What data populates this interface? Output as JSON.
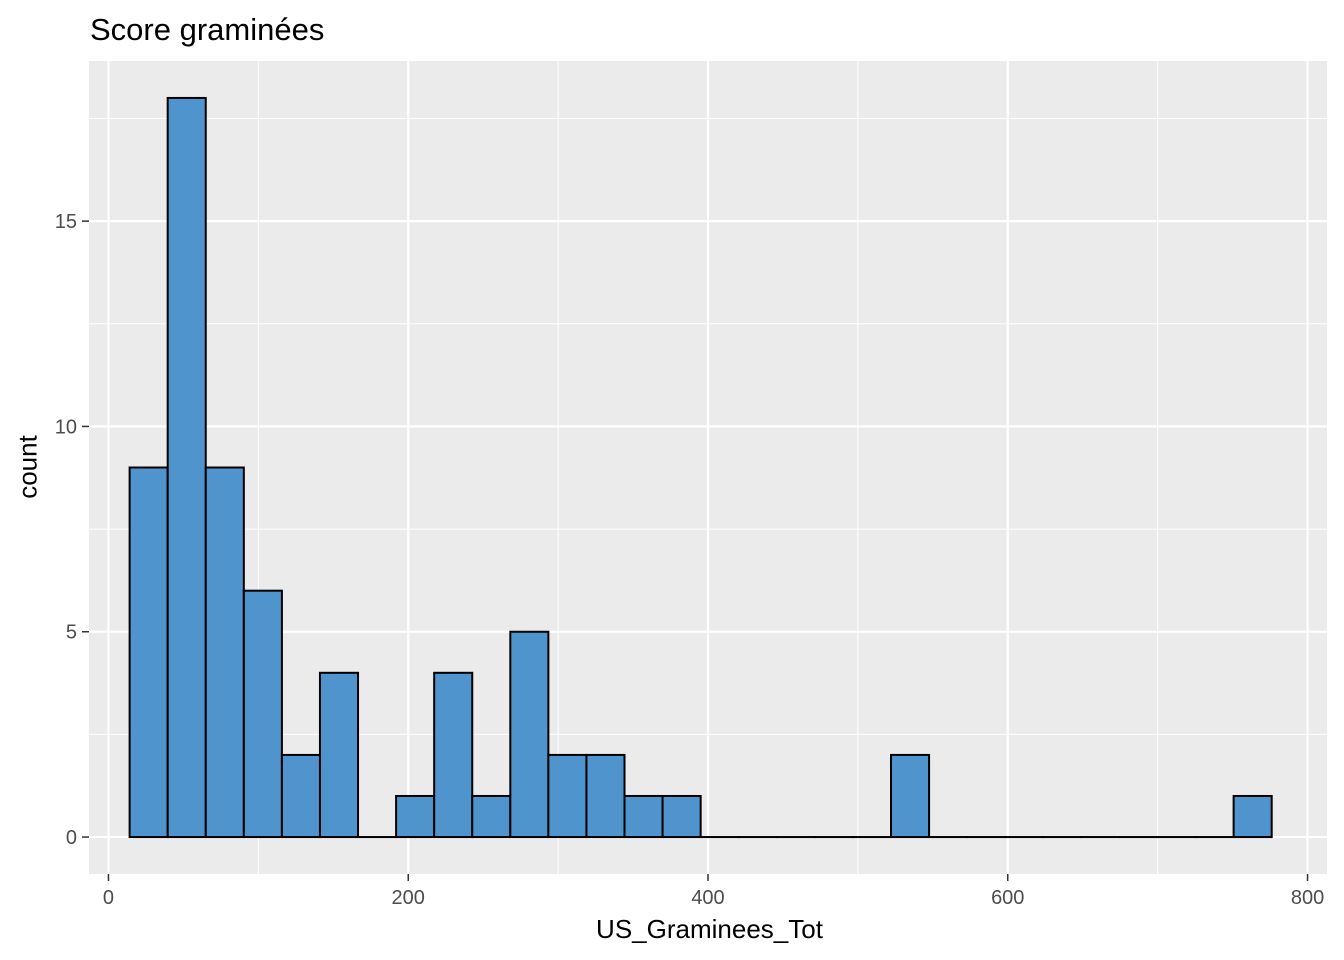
{
  "chart_data": {
    "type": "bar",
    "subtype": "histogram",
    "title": "Score graminées",
    "xlabel": "US_Graminees_Tot",
    "ylabel": "count",
    "xlim": [
      -13,
      813
    ],
    "ylim": [
      -0.9,
      18.9
    ],
    "x_ticks": [
      0,
      200,
      400,
      600,
      800
    ],
    "y_ticks": [
      0,
      5,
      10,
      15
    ],
    "bin_width": 25.4,
    "bins": [
      {
        "start": 14.1,
        "count": 9
      },
      {
        "start": 39.5,
        "count": 18
      },
      {
        "start": 64.9,
        "count": 9
      },
      {
        "start": 90.3,
        "count": 6
      },
      {
        "start": 115.7,
        "count": 2
      },
      {
        "start": 141.1,
        "count": 4
      },
      {
        "start": 166.5,
        "count": 0
      },
      {
        "start": 191.9,
        "count": 1
      },
      {
        "start": 217.3,
        "count": 4
      },
      {
        "start": 242.7,
        "count": 1
      },
      {
        "start": 268.1,
        "count": 5
      },
      {
        "start": 293.5,
        "count": 2
      },
      {
        "start": 318.9,
        "count": 2
      },
      {
        "start": 344.3,
        "count": 1
      },
      {
        "start": 369.7,
        "count": 1
      },
      {
        "start": 395.1,
        "count": 0
      },
      {
        "start": 420.5,
        "count": 0
      },
      {
        "start": 445.9,
        "count": 0
      },
      {
        "start": 471.3,
        "count": 0
      },
      {
        "start": 496.7,
        "count": 0
      },
      {
        "start": 522.1,
        "count": 2
      },
      {
        "start": 547.5,
        "count": 0
      },
      {
        "start": 572.9,
        "count": 0
      },
      {
        "start": 598.3,
        "count": 0
      },
      {
        "start": 623.7,
        "count": 0
      },
      {
        "start": 649.1,
        "count": 0
      },
      {
        "start": 674.5,
        "count": 0
      },
      {
        "start": 699.9,
        "count": 0
      },
      {
        "start": 725.3,
        "count": 0
      },
      {
        "start": 750.7,
        "count": 1
      }
    ],
    "colors": {
      "panel": "#EBEBEB",
      "grid": "#FFFFFF",
      "bar_fill": "#4F94CD",
      "bar_stroke": "#000000",
      "tick_text": "#4D4D4D",
      "tick_mark": "#333333"
    },
    "grid": true,
    "legend": "none"
  }
}
